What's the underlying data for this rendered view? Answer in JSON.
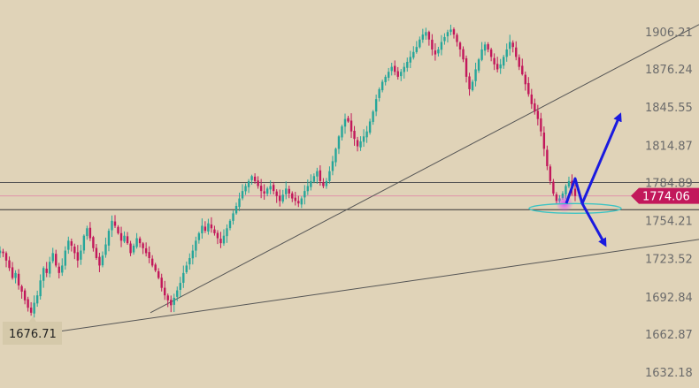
{
  "chart_data": {
    "type": "candlestick",
    "y_axis": {
      "ticks": [
        "1906.21",
        "1876.24",
        "1845.55",
        "1814.87",
        "1784.89",
        "1754.21",
        "1723.52",
        "1692.84",
        "1662.87",
        "1632.18"
      ],
      "ylim": [
        1632.18,
        1906.21
      ],
      "side": "right"
    },
    "current_price": {
      "value": "1774.06",
      "color": "#c2185b"
    },
    "low_label": {
      "value": "1676.71"
    },
    "horizontal_levels": [
      {
        "name": "resistance",
        "value": 1784.89,
        "color": "#555555"
      },
      {
        "name": "current",
        "value": 1774.06,
        "color": "#e08aa8"
      },
      {
        "name": "support",
        "value": 1763.0,
        "color": "#333333"
      }
    ],
    "candle_colors": {
      "up": "#26a69a",
      "down": "#c2185b"
    },
    "closes": [
      1730,
      1728,
      1722,
      1716,
      1708,
      1712,
      1702,
      1697,
      1690,
      1684,
      1680,
      1688,
      1694,
      1706,
      1716,
      1712,
      1721,
      1728,
      1718,
      1712,
      1718,
      1730,
      1738,
      1734,
      1728,
      1722,
      1730,
      1742,
      1748,
      1740,
      1732,
      1724,
      1718,
      1726,
      1735,
      1746,
      1754,
      1750,
      1744,
      1738,
      1742,
      1736,
      1728,
      1734,
      1740,
      1736,
      1732,
      1728,
      1724,
      1718,
      1714,
      1708,
      1700,
      1694,
      1690,
      1686,
      1692,
      1698,
      1704,
      1712,
      1718,
      1724,
      1730,
      1738,
      1744,
      1750,
      1746,
      1752,
      1748,
      1744,
      1740,
      1736,
      1742,
      1748,
      1754,
      1760,
      1766,
      1772,
      1778,
      1782,
      1786,
      1790,
      1786,
      1782,
      1778,
      1776,
      1780,
      1782,
      1778,
      1774,
      1770,
      1775,
      1780,
      1776,
      1772,
      1770,
      1768,
      1772,
      1778,
      1782,
      1786,
      1790,
      1794,
      1786,
      1782,
      1786,
      1794,
      1802,
      1812,
      1822,
      1830,
      1836,
      1834,
      1826,
      1820,
      1814,
      1818,
      1822,
      1826,
      1834,
      1842,
      1852,
      1860,
      1866,
      1870,
      1874,
      1878,
      1874,
      1870,
      1874,
      1878,
      1882,
      1886,
      1890,
      1894,
      1900,
      1904,
      1906,
      1900,
      1892,
      1888,
      1892,
      1898,
      1902,
      1906,
      1908,
      1904,
      1898,
      1892,
      1884,
      1870,
      1860,
      1866,
      1876,
      1884,
      1892,
      1896,
      1892,
      1886,
      1880,
      1876,
      1880,
      1886,
      1892,
      1898,
      1894,
      1886,
      1878,
      1872,
      1864,
      1856,
      1848,
      1842,
      1836,
      1826,
      1812,
      1798,
      1786,
      1776,
      1770,
      1772,
      1776,
      1782,
      1786,
      1780,
      1774
    ],
    "trendlines": [
      {
        "name": "upper-trendline",
        "from": [
          170,
          1680
        ],
        "to": [
          790,
          1912
        ]
      },
      {
        "name": "lower-trendline",
        "from": [
          38,
          1662
        ],
        "to": [
          790,
          1739
        ]
      }
    ],
    "annotations": [
      {
        "name": "bullish-projection",
        "type": "arrow",
        "color": "#1a1adf"
      },
      {
        "name": "bearish-projection",
        "type": "arrow",
        "color": "#1a1adf"
      },
      {
        "name": "zone-ellipse",
        "type": "ellipse",
        "color": "#3ec3c3"
      },
      {
        "name": "highlight-glow",
        "type": "glow",
        "color": "#e040fb"
      }
    ]
  }
}
